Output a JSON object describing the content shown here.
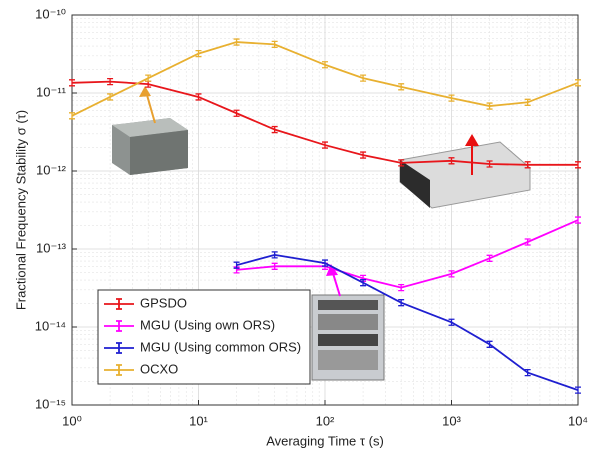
{
  "chart_data": {
    "type": "line",
    "x_label": "Averaging Time τ (s)",
    "y_label": "Fractional Frequency Stability σ (τ)",
    "log_x": true,
    "log_y": true,
    "grid": true,
    "legend": "lower left",
    "xlim": [
      1,
      10000
    ],
    "ylim": [
      1e-15,
      1e-10
    ],
    "xticks": [
      {
        "value": 1,
        "label": "10⁰"
      },
      {
        "value": 10,
        "label": "10¹"
      },
      {
        "value": 100,
        "label": "10²"
      },
      {
        "value": 1000,
        "label": "10³"
      },
      {
        "value": 10000,
        "label": "10⁴"
      }
    ],
    "yticks": [
      {
        "value": 1e-15,
        "label": "10⁻¹⁵"
      },
      {
        "value": 1e-14,
        "label": "10⁻¹⁴"
      },
      {
        "value": 1e-13,
        "label": "10⁻¹³"
      },
      {
        "value": 1e-12,
        "label": "10⁻¹²"
      },
      {
        "value": 1e-11,
        "label": "10⁻¹¹"
      },
      {
        "value": 1e-10,
        "label": "10⁻¹⁰"
      }
    ],
    "series": [
      {
        "name": "GPSDO",
        "color": "#e8161b",
        "x": [
          1,
          2,
          4,
          10,
          20,
          40,
          100,
          200,
          400,
          1000,
          2000,
          4000,
          10000
        ],
        "values": [
          1.35e-11,
          1.4e-11,
          1.3e-11,
          8.9e-12,
          5.5e-12,
          3.4e-12,
          2.15e-12,
          1.6e-12,
          1.27e-12,
          1.35e-12,
          1.23e-12,
          1.2e-12,
          1.2e-12
        ]
      },
      {
        "name": "MGU (Using own ORS)",
        "color": "#ff00ff",
        "x": [
          20,
          40,
          100,
          200,
          400,
          1000,
          2000,
          4000,
          10000
        ],
        "values": [
          5.4e-14,
          6e-14,
          6e-14,
          4.2e-14,
          3.2e-14,
          4.8e-14,
          7.6e-14,
          1.23e-13,
          2.35e-13
        ]
      },
      {
        "name": "MGU (Using common ORS)",
        "color": "#1f1fd0",
        "x": [
          20,
          40,
          100,
          200,
          400,
          1000,
          2000,
          4000,
          10000
        ],
        "values": [
          6.2e-14,
          8.4e-14,
          6.6e-14,
          3.7e-14,
          2.05e-14,
          1.15e-14,
          6e-15,
          2.6e-15,
          1.55e-15
        ]
      },
      {
        "name": "OCXO",
        "color": "#e8b030",
        "x": [
          1,
          2,
          4,
          10,
          20,
          40,
          100,
          200,
          400,
          1000,
          2000,
          4000,
          10000
        ],
        "values": [
          5.1e-12,
          8.9e-12,
          1.55e-11,
          3.2e-11,
          4.5e-11,
          4.2e-11,
          2.3e-11,
          1.55e-11,
          1.2e-11,
          8.6e-12,
          6.8e-12,
          7.6e-12,
          1.35e-11
        ]
      }
    ]
  }
}
